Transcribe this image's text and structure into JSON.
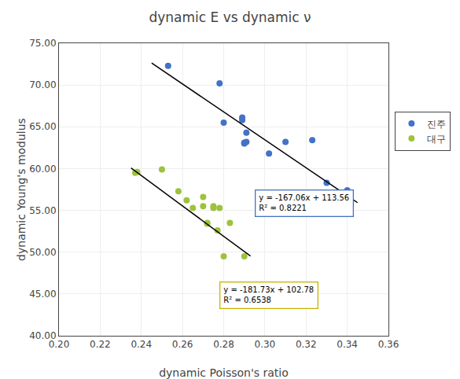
{
  "chart_data": {
    "type": "scatter",
    "title": "dynamic E vs dynamic ν",
    "xlabel": "dynamic Poisson's ratio",
    "ylabel": "dynamic Young's modulus",
    "xlim": [
      0.2,
      0.36
    ],
    "ylim": [
      40.0,
      75.0
    ],
    "xticks": [
      {
        "value": 0.2,
        "label": "0.20"
      },
      0.22,
      0.24,
      0.26,
      0.28,
      {
        "value": 0.3,
        "label": "0.30"
      },
      0.32,
      0.34,
      0.36
    ],
    "yticks": [
      {
        "value": 40,
        "label": "40.00"
      },
      {
        "value": 45,
        "label": "45.00"
      },
      {
        "value": 50,
        "label": "50.00"
      },
      {
        "value": 55,
        "label": "55.00"
      },
      {
        "value": 60,
        "label": "60.00"
      },
      {
        "value": 65,
        "label": "65.00"
      },
      {
        "value": 70,
        "label": "70.00"
      },
      {
        "value": 75,
        "label": "75.00"
      }
    ],
    "grid": true,
    "legend": "right",
    "series": [
      {
        "name": "진주",
        "type": "scatter",
        "marker": "circle",
        "color": "#4472C4",
        "x": [
          0.253,
          0.278,
          0.28,
          0.289,
          0.289,
          0.29,
          0.29,
          0.291,
          0.291,
          0.302,
          0.31,
          0.323,
          0.33,
          0.34
        ],
        "values": [
          72.3,
          70.2,
          65.5,
          65.8,
          66.1,
          63.0,
          63.1,
          63.2,
          64.3,
          61.8,
          63.2,
          63.4,
          58.3,
          57.4
        ]
      },
      {
        "name": "대구",
        "type": "scatter",
        "marker": "circle",
        "color": "#9DC33C",
        "x": [
          0.237,
          0.238,
          0.25,
          0.258,
          0.262,
          0.265,
          0.27,
          0.27,
          0.272,
          0.272,
          0.275,
          0.275,
          0.277,
          0.278,
          0.28,
          0.283,
          0.29
        ],
        "values": [
          59.5,
          59.6,
          59.9,
          57.3,
          56.2,
          55.3,
          55.5,
          56.6,
          53.4,
          53.5,
          55.3,
          55.5,
          52.6,
          55.3,
          49.5,
          53.5,
          49.5
        ]
      },
      {
        "type": "line",
        "line_style": "solid",
        "color": "#000000",
        "x": [
          0.245,
          0.345
        ],
        "values": [
          72.6303,
          55.9243
        ]
      },
      {
        "type": "line",
        "line_style": "solid",
        "color": "#000000",
        "x": [
          0.235,
          0.293
        ],
        "values": [
          60.07345,
          49.53311
        ]
      }
    ],
    "annotations": [
      {
        "text": [
          "y = -167.06x + 113.56",
          "R² = 0.8221"
        ],
        "x": 0.295,
        "y": 57.5,
        "color": "#4472C4"
      },
      {
        "text": [
          "y = -181.73x + 102.78",
          "R² = 0.6538"
        ],
        "x": 0.278,
        "y": 46.5,
        "color": "#c8b400"
      }
    ]
  }
}
